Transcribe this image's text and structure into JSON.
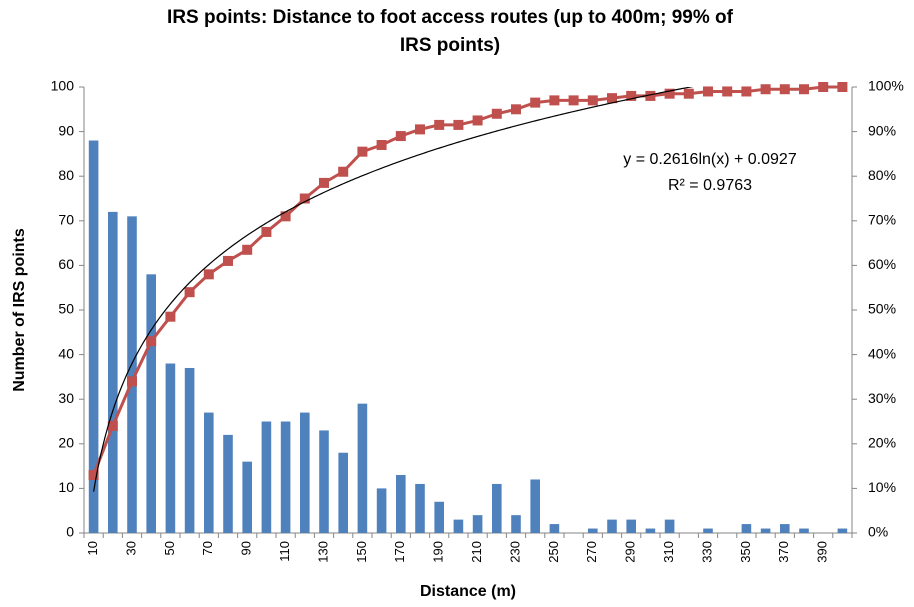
{
  "chart_data": {
    "type": "bar",
    "title": "IRS points: Distance to foot access routes (up to 400m; 99% of IRS points)",
    "xlabel": "Distance (m)",
    "ylabel": "Number of IRS points",
    "categories": [
      10,
      null,
      30,
      null,
      50,
      null,
      70,
      null,
      90,
      null,
      110,
      null,
      130,
      null,
      150,
      null,
      170,
      null,
      190,
      null,
      210,
      null,
      230,
      null,
      250,
      null,
      270,
      null,
      290,
      null,
      310,
      null,
      330,
      null,
      350,
      null,
      370,
      null,
      390,
      null
    ],
    "series": [
      {
        "color": "#4f81bd",
        "values": [
          88,
          72,
          71,
          58,
          38,
          37,
          27,
          22,
          16,
          25,
          25,
          27,
          23,
          18,
          29,
          10,
          13,
          11,
          7,
          3,
          4,
          11,
          4,
          12,
          2,
          0,
          1,
          3,
          3,
          1,
          3,
          0,
          1,
          0,
          2,
          1,
          2,
          1,
          0,
          1
        ]
      },
      {
        "color": "#c0504d",
        "axis": "y2",
        "values": [
          13,
          24,
          34,
          43,
          48.5,
          54,
          58,
          61,
          63.5,
          67.5,
          71,
          75,
          78.5,
          81,
          85.5,
          87,
          89,
          90.5,
          91.5,
          91.5,
          92.5,
          94,
          95,
          96.5,
          97,
          97,
          97,
          97.5,
          98,
          98,
          98.5,
          98.5,
          99,
          99,
          99,
          99.5,
          99.5,
          99.5,
          100,
          100
        ]
      }
    ],
    "trendline": {
      "equation": "y = 0.2616ln(x) + 0.0927",
      "r2": "R² = 0.9763",
      "coef": 0.2616,
      "intercept": 0.0927,
      "color": "#000000"
    },
    "ylim": [
      0,
      100
    ],
    "yticks": [
      0,
      10,
      20,
      30,
      40,
      50,
      60,
      70,
      80,
      90,
      100
    ],
    "y2lim": [
      0,
      100
    ],
    "y2ticks": [
      {
        "value": 0,
        "label": "0%"
      },
      {
        "value": 10,
        "label": "10%"
      },
      {
        "value": 20,
        "label": "20%"
      },
      {
        "value": 30,
        "label": "30%"
      },
      {
        "value": 40,
        "label": "40%"
      },
      {
        "value": 50,
        "label": "50%"
      },
      {
        "value": 60,
        "label": "60%"
      },
      {
        "value": 70,
        "label": "70%"
      },
      {
        "value": 80,
        "label": "80%"
      },
      {
        "value": 90,
        "label": "90%"
      },
      {
        "value": 100,
        "label": "100%"
      }
    ]
  }
}
